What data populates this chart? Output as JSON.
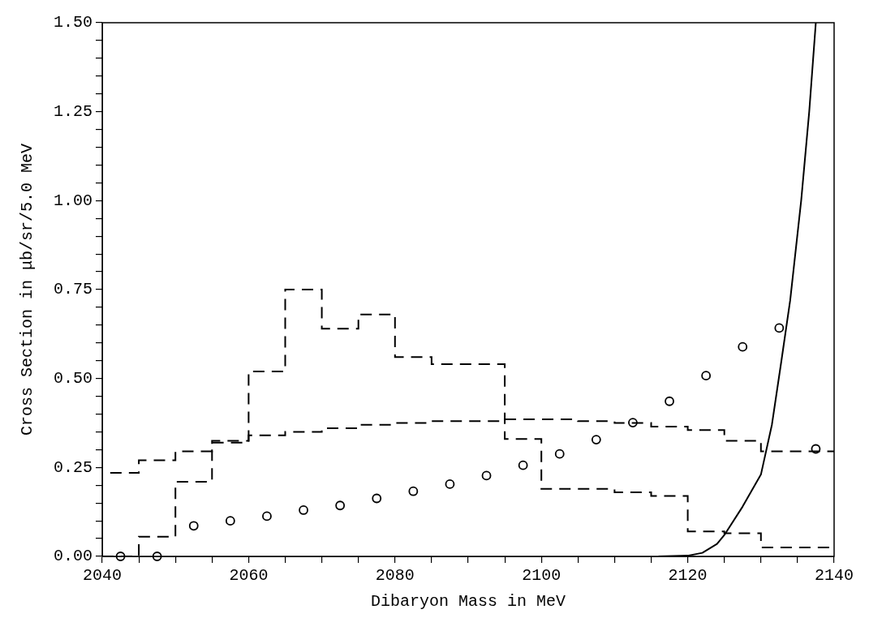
{
  "chart_data": {
    "type": "step",
    "xlabel": "Dibaryon Mass in MeV",
    "ylabel": "Cross Section in μb/sr/5.0 MeV",
    "series": [
      {
        "color": "#000000",
        "line_style": "dashed",
        "x": [
          2040,
          2045,
          2050,
          2055,
          2060,
          2065,
          2070,
          2075,
          2080,
          2085,
          2090,
          2095,
          2100,
          2105,
          2110,
          2115,
          2120,
          2125,
          2130,
          2135,
          2140
        ],
        "values": [
          0,
          0,
          0.055,
          0.21,
          0.32,
          0.52,
          0.75,
          0.64,
          0.68,
          0.56,
          0.54,
          0.54,
          0.33,
          0.19,
          0.19,
          0.18,
          0.17,
          0.07,
          0.065,
          0.025,
          0.025
        ]
      },
      {
        "color": "#000000",
        "line_style": "dashed",
        "x": [
          2040,
          2045,
          2050,
          2055,
          2060,
          2065,
          2070,
          2075,
          2080,
          2085,
          2090,
          2095,
          2100,
          2105,
          2110,
          2115,
          2120,
          2125,
          2130,
          2135,
          2140
        ],
        "values": [
          0.205,
          0.235,
          0.27,
          0.295,
          0.325,
          0.34,
          0.35,
          0.36,
          0.37,
          0.375,
          0.38,
          0.38,
          0.385,
          0.385,
          0.38,
          0.375,
          0.365,
          0.355,
          0.325,
          0.295,
          0.295
        ]
      },
      {
        "type": "scatter",
        "color": "#000000",
        "marker": "circle",
        "x": [
          2042.5,
          2047.5,
          2052.5,
          2057.5,
          2062.5,
          2067.5,
          2072.5,
          2077.5,
          2082.5,
          2087.5,
          2092.5,
          2097.5,
          2102.5,
          2107.5,
          2112.5,
          2117.5,
          2122.5,
          2127.5,
          2132.5,
          2137.5
        ],
        "values": [
          0,
          0,
          0.086,
          0.1,
          0.113,
          0.13,
          0.143,
          0.163,
          0.183,
          0.203,
          0.227,
          0.256,
          0.288,
          0.328,
          0.376,
          0.436,
          0.508,
          0.589,
          0.642,
          0.302
        ]
      },
      {
        "type": "line",
        "color": "#000000",
        "line_style": "solid",
        "x": [
          2116,
          2120,
          2122,
          2124,
          2125,
          2127.5,
          2130,
          2131.5,
          2132.8,
          2134,
          2135.5,
          2136.6,
          2137.5
        ],
        "values": [
          0,
          0.002,
          0.01,
          0.035,
          0.06,
          0.14,
          0.23,
          0.37,
          0.55,
          0.72,
          1.0,
          1.25,
          1.5
        ]
      }
    ],
    "xlim": [
      2040,
      2140
    ],
    "xticks": [
      2040,
      {
        "value": 2045,
        "label": null
      },
      {
        "value": 2050,
        "label": null
      },
      {
        "value": 2055,
        "label": null
      },
      2060,
      {
        "value": 2065,
        "label": null
      },
      {
        "value": 2070,
        "label": null
      },
      {
        "value": 2075,
        "label": null
      },
      2080,
      {
        "value": 2085,
        "label": null
      },
      {
        "value": 2090,
        "label": null
      },
      {
        "value": 2095,
        "label": null
      },
      2100,
      {
        "value": 2105,
        "label": null
      },
      {
        "value": 2110,
        "label": null
      },
      {
        "value": 2115,
        "label": null
      },
      2120,
      {
        "value": 2125,
        "label": null
      },
      {
        "value": 2130,
        "label": null
      },
      {
        "value": 2135,
        "label": null
      },
      2140
    ],
    "ylim": [
      0,
      1.5
    ],
    "yticks": [
      {
        "value": 0,
        "label": "0.00"
      },
      {
        "value": 0.05,
        "label": null
      },
      {
        "value": 0.1,
        "label": null
      },
      {
        "value": 0.15,
        "label": null
      },
      {
        "value": 0.2,
        "label": null
      },
      0.25,
      {
        "value": 0.3,
        "label": null
      },
      {
        "value": 0.35,
        "label": null
      },
      {
        "value": 0.4,
        "label": null
      },
      {
        "value": 0.45,
        "label": null
      },
      {
        "value": 0.5,
        "label": "0.50"
      },
      {
        "value": 0.55,
        "label": null
      },
      {
        "value": 0.6,
        "label": null
      },
      {
        "value": 0.65,
        "label": null
      },
      {
        "value": 0.7,
        "label": null
      },
      0.75,
      {
        "value": 0.8,
        "label": null
      },
      {
        "value": 0.85,
        "label": null
      },
      {
        "value": 0.9,
        "label": null
      },
      {
        "value": 0.95,
        "label": null
      },
      {
        "value": 1,
        "label": "1.00"
      },
      {
        "value": 1.05,
        "label": null
      },
      {
        "value": 1.1,
        "label": null
      },
      {
        "value": 1.15,
        "label": null
      },
      {
        "value": 1.2,
        "label": null
      },
      1.25,
      {
        "value": 1.3,
        "label": null
      },
      {
        "value": 1.35,
        "label": null
      },
      {
        "value": 1.4,
        "label": null
      },
      {
        "value": 1.45,
        "label": null
      },
      {
        "value": 1.5,
        "label": "1.50"
      }
    ],
    "grid": false,
    "legend": false
  }
}
